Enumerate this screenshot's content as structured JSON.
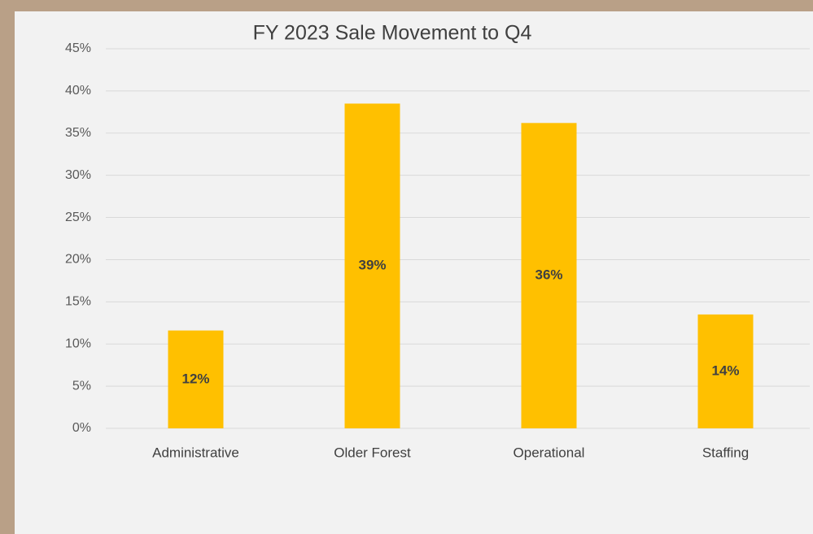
{
  "chart_data": {
    "type": "bar",
    "title": "FY 2023 Sale Movement  to Q4",
    "categories": [
      "Administrative",
      "Older Forest",
      "Operational",
      "Staffing"
    ],
    "values": [
      11.6,
      38.5,
      36.2,
      13.5
    ],
    "value_labels": [
      "12%",
      "39%",
      "36%",
      "14%"
    ],
    "color": "#ffc000",
    "ylim": [
      0,
      45
    ],
    "yticks": [
      {
        "value": 0,
        "label": "0%"
      },
      {
        "value": 5,
        "label": "5%"
      },
      {
        "value": 10,
        "label": "10%"
      },
      {
        "value": 15,
        "label": "15%"
      },
      {
        "value": 20,
        "label": "20%"
      },
      {
        "value": 25,
        "label": "25%"
      },
      {
        "value": 30,
        "label": "30%"
      },
      {
        "value": 35,
        "label": "35%"
      },
      {
        "value": 40,
        "label": "40%"
      },
      {
        "value": 45,
        "label": "45%"
      }
    ],
    "grid": true
  }
}
